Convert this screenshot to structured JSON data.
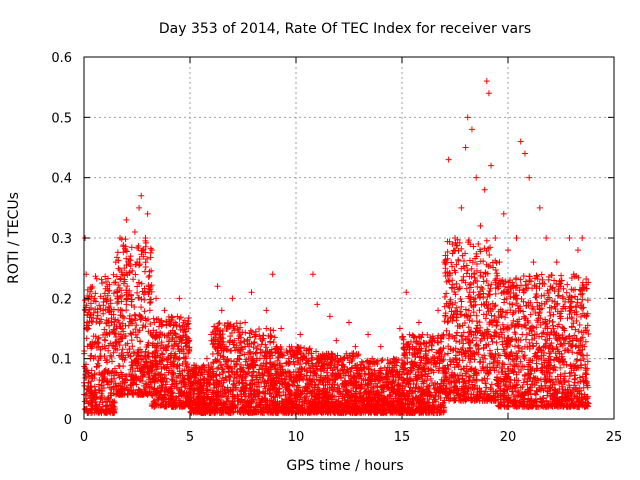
{
  "chart_data": {
    "type": "scatter",
    "title": "Day 353 of 2014, Rate Of TEC Index for receiver vars",
    "xlabel": "GPS time / hours",
    "ylabel": "ROTI / TECUs",
    "xlim": [
      0,
      25
    ],
    "ylim": [
      0,
      0.6
    ],
    "xticks": [
      "0",
      "5",
      "10",
      "15",
      "20",
      "25"
    ],
    "yticks": [
      "0",
      "0.1",
      "0.2",
      "0.3",
      "0.4",
      "0.5",
      "0.6"
    ],
    "xtick_values": [
      0,
      5,
      10,
      15,
      20,
      25
    ],
    "ytick_values": [
      0,
      0.1,
      0.2,
      0.3,
      0.4,
      0.5,
      0.6
    ],
    "grid": true,
    "marker": "+",
    "color": "#ff0000",
    "series": [
      {
        "name": "ROTI",
        "points": [
          [
            0.0,
            0.06
          ],
          [
            0.05,
            0.3
          ],
          [
            0.1,
            0.24
          ],
          [
            0.2,
            0.15
          ],
          [
            0.3,
            0.1
          ],
          [
            0.5,
            0.2
          ],
          [
            0.7,
            0.12
          ],
          [
            0.9,
            0.18
          ],
          [
            1.1,
            0.22
          ],
          [
            1.3,
            0.16
          ],
          [
            1.5,
            0.26
          ],
          [
            1.7,
            0.3
          ],
          [
            1.9,
            0.25
          ],
          [
            2.0,
            0.33
          ],
          [
            2.2,
            0.27
          ],
          [
            2.4,
            0.31
          ],
          [
            2.6,
            0.35
          ],
          [
            2.7,
            0.37
          ],
          [
            2.9,
            0.3
          ],
          [
            3.0,
            0.34
          ],
          [
            3.2,
            0.28
          ],
          [
            3.4,
            0.2
          ],
          [
            3.6,
            0.14
          ],
          [
            3.8,
            0.18
          ],
          [
            4.0,
            0.1
          ],
          [
            4.3,
            0.16
          ],
          [
            4.5,
            0.2
          ],
          [
            4.8,
            0.12
          ],
          [
            5.2,
            0.08
          ],
          [
            5.5,
            0.06
          ],
          [
            5.8,
            0.1
          ],
          [
            6.0,
            0.14
          ],
          [
            6.3,
            0.22
          ],
          [
            6.5,
            0.18
          ],
          [
            6.7,
            0.12
          ],
          [
            7.0,
            0.2
          ],
          [
            7.3,
            0.1
          ],
          [
            7.6,
            0.16
          ],
          [
            7.9,
            0.21
          ],
          [
            8.1,
            0.14
          ],
          [
            8.3,
            0.1
          ],
          [
            8.6,
            0.18
          ],
          [
            8.9,
            0.24
          ],
          [
            9.0,
            0.09
          ],
          [
            9.3,
            0.15
          ],
          [
            9.6,
            0.11
          ],
          [
            9.9,
            0.07
          ],
          [
            10.2,
            0.14
          ],
          [
            10.5,
            0.1
          ],
          [
            10.8,
            0.24
          ],
          [
            11.0,
            0.19
          ],
          [
            11.3,
            0.09
          ],
          [
            11.6,
            0.17
          ],
          [
            11.9,
            0.13
          ],
          [
            12.2,
            0.08
          ],
          [
            12.5,
            0.16
          ],
          [
            12.8,
            0.12
          ],
          [
            13.1,
            0.09
          ],
          [
            13.4,
            0.14
          ],
          [
            13.7,
            0.08
          ],
          [
            14.0,
            0.12
          ],
          [
            14.3,
            0.07
          ],
          [
            14.6,
            0.1
          ],
          [
            14.9,
            0.15
          ],
          [
            15.2,
            0.21
          ],
          [
            15.5,
            0.12
          ],
          [
            15.8,
            0.16
          ],
          [
            16.1,
            0.1
          ],
          [
            16.4,
            0.13
          ],
          [
            16.7,
            0.18
          ],
          [
            17.0,
            0.26
          ],
          [
            17.2,
            0.43
          ],
          [
            17.5,
            0.3
          ],
          [
            17.8,
            0.35
          ],
          [
            18.0,
            0.45
          ],
          [
            18.1,
            0.5
          ],
          [
            18.3,
            0.48
          ],
          [
            18.5,
            0.4
          ],
          [
            18.7,
            0.32
          ],
          [
            18.9,
            0.38
          ],
          [
            19.0,
            0.56
          ],
          [
            19.1,
            0.54
          ],
          [
            19.2,
            0.42
          ],
          [
            19.4,
            0.3
          ],
          [
            19.6,
            0.26
          ],
          [
            19.8,
            0.34
          ],
          [
            20.0,
            0.28
          ],
          [
            20.2,
            0.22
          ],
          [
            20.4,
            0.3
          ],
          [
            20.6,
            0.46
          ],
          [
            20.8,
            0.44
          ],
          [
            21.0,
            0.4
          ],
          [
            21.2,
            0.26
          ],
          [
            21.5,
            0.35
          ],
          [
            21.8,
            0.3
          ],
          [
            22.0,
            0.22
          ],
          [
            22.3,
            0.26
          ],
          [
            22.6,
            0.2
          ],
          [
            22.9,
            0.3
          ],
          [
            23.1,
            0.24
          ],
          [
            23.3,
            0.28
          ],
          [
            23.5,
            0.3
          ],
          [
            23.6,
            0.12
          ],
          [
            23.7,
            0.06
          ]
        ]
      }
    ],
    "density_bands": [
      {
        "x": [
          0.0,
          0.5
        ],
        "low": 0.01,
        "high": 0.22
      },
      {
        "x": [
          0.5,
          1.5
        ],
        "low": 0.01,
        "high": 0.24
      },
      {
        "x": [
          1.5,
          3.2
        ],
        "low": 0.04,
        "high": 0.3
      },
      {
        "x": [
          3.2,
          5.0
        ],
        "low": 0.02,
        "high": 0.17
      },
      {
        "x": [
          5.0,
          6.0
        ],
        "low": 0.01,
        "high": 0.09
      },
      {
        "x": [
          6.0,
          7.5
        ],
        "low": 0.01,
        "high": 0.16
      },
      {
        "x": [
          7.5,
          9.0
        ],
        "low": 0.01,
        "high": 0.15
      },
      {
        "x": [
          9.0,
          11.0
        ],
        "low": 0.01,
        "high": 0.12
      },
      {
        "x": [
          11.0,
          13.0
        ],
        "low": 0.01,
        "high": 0.11
      },
      {
        "x": [
          13.0,
          15.0
        ],
        "low": 0.01,
        "high": 0.1
      },
      {
        "x": [
          15.0,
          17.0
        ],
        "low": 0.01,
        "high": 0.14
      },
      {
        "x": [
          17.0,
          19.5
        ],
        "low": 0.03,
        "high": 0.3
      },
      {
        "x": [
          19.5,
          21.0
        ],
        "low": 0.02,
        "high": 0.24
      },
      {
        "x": [
          21.0,
          23.8
        ],
        "low": 0.02,
        "high": 0.24
      }
    ]
  }
}
